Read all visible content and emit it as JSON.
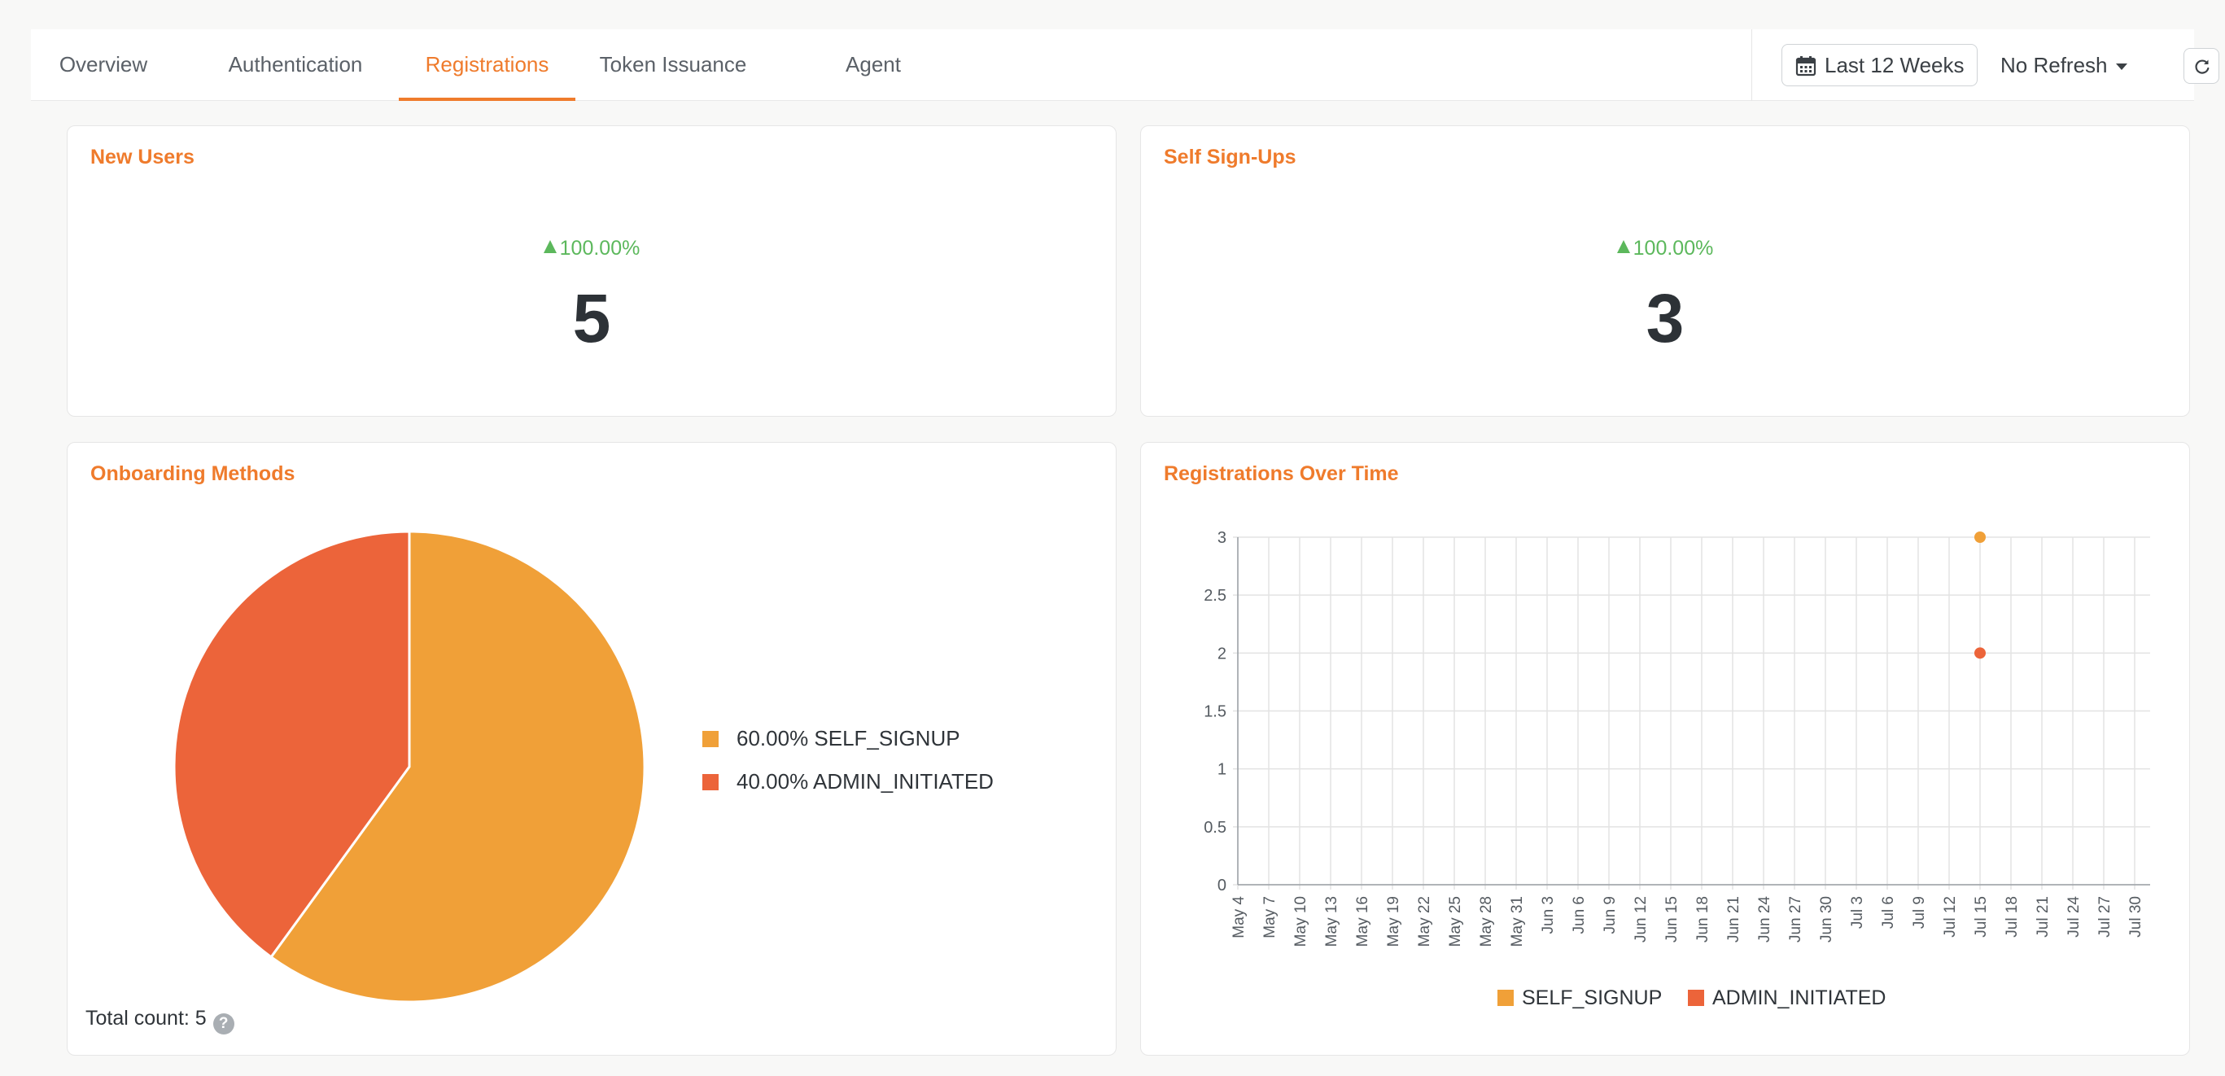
{
  "tabs": [
    {
      "label": "Overview"
    },
    {
      "label": "Authentication"
    },
    {
      "label": "Registrations"
    },
    {
      "label": "Token Issuance"
    },
    {
      "label": "Agent"
    }
  ],
  "active_tab": "Registrations",
  "toolbar": {
    "date_range": "Last 12 Weeks",
    "refresh": "No Refresh"
  },
  "colors": {
    "accent": "#ef7b2c",
    "self_signup": "#f0a038",
    "admin_initiated": "#ec643a",
    "positive": "#5cb85c"
  },
  "new_users": {
    "title": "New Users",
    "delta": "100.00%",
    "value": "5"
  },
  "self_signups": {
    "title": "Self Sign-Ups",
    "delta": "100.00%",
    "value": "3"
  },
  "onboarding": {
    "title": "Onboarding Methods",
    "total_label": "Total count: 5",
    "legend": [
      "60.00% SELF_SIGNUP",
      "40.00% ADMIN_INITIATED"
    ]
  },
  "over_time": {
    "title": "Registrations Over Time"
  },
  "chart_data": [
    {
      "type": "pie",
      "title": "Onboarding Methods",
      "categories": [
        "SELF_SIGNUP",
        "ADMIN_INITIATED"
      ],
      "values": [
        3,
        2
      ],
      "percentages": [
        60.0,
        40.0
      ],
      "colors": [
        "#f0a038",
        "#ec643a"
      ],
      "legend": "right"
    },
    {
      "type": "scatter",
      "title": "Registrations Over Time",
      "x": [
        "May 4",
        "May 7",
        "May 10",
        "May 13",
        "May 16",
        "May 19",
        "May 22",
        "May 25",
        "May 28",
        "May 31",
        "Jun 3",
        "Jun 6",
        "Jun 9",
        "Jun 12",
        "Jun 15",
        "Jun 18",
        "Jun 21",
        "Jun 24",
        "Jun 27",
        "Jun 30",
        "Jul 3",
        "Jul 6",
        "Jul 9",
        "Jul 12",
        "Jul 15",
        "Jul 18",
        "Jul 21",
        "Jul 24",
        "Jul 27",
        "Jul 30"
      ],
      "yticks": [
        "0",
        "0.5",
        "1",
        "1.5",
        "2",
        "2.5",
        "3"
      ],
      "ylim": [
        0,
        3
      ],
      "series": [
        {
          "name": "SELF_SIGNUP",
          "color": "#f0a038",
          "points": [
            {
              "x": "Jul 15",
              "y": 3
            }
          ]
        },
        {
          "name": "ADMIN_INITIATED",
          "color": "#ec643a",
          "points": [
            {
              "x": "Jul 15",
              "y": 2
            }
          ]
        }
      ],
      "grid": true,
      "legend": "bottom"
    }
  ]
}
